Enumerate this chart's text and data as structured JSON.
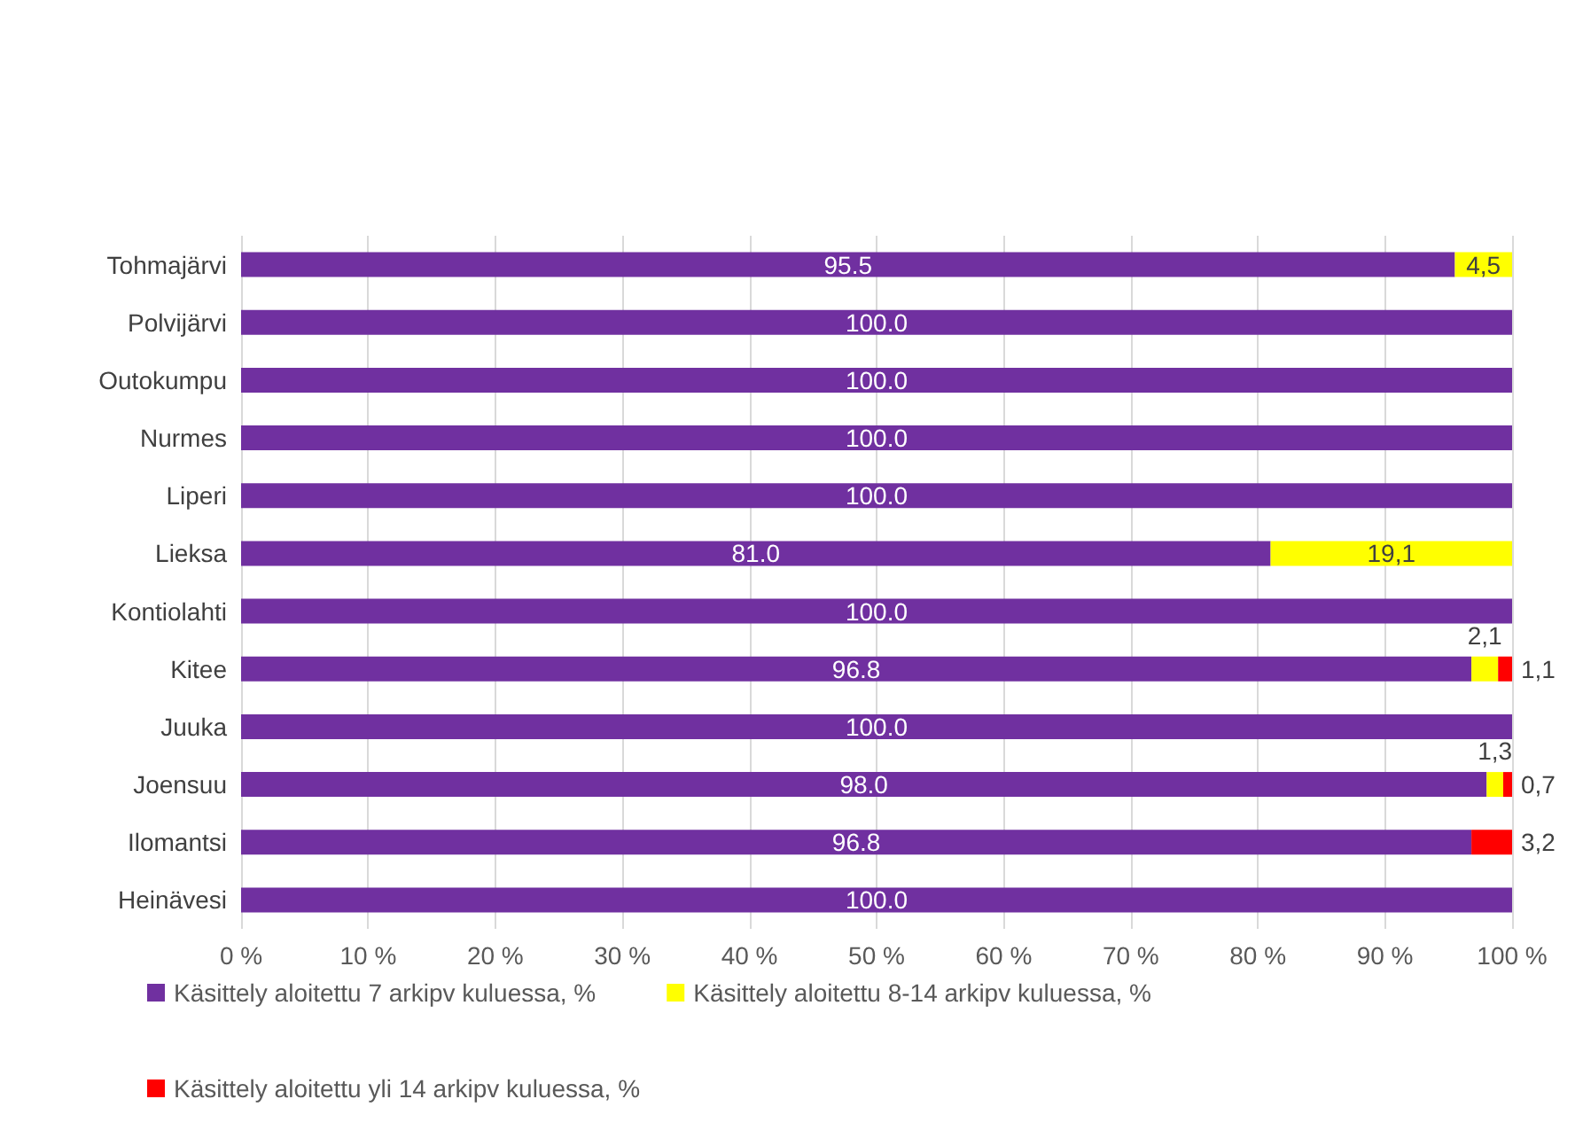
{
  "chart_data": {
    "type": "bar",
    "orientation": "horizontal",
    "stacked": true,
    "categories": [
      "Tohmajärvi",
      "Polvijärvi",
      "Outokumpu",
      "Nurmes",
      "Liperi",
      "Lieksa",
      "Kontiolahti",
      "Kitee",
      "Juuka",
      "Joensuu",
      "Ilomantsi",
      "Heinävesi"
    ],
    "series": [
      {
        "name": "Käsittely aloitettu 7 arkipv kuluessa, %",
        "color": "#7030a0",
        "values": [
          95.5,
          100,
          100,
          100,
          100,
          81.0,
          100,
          96.8,
          100,
          98.0,
          96.8,
          100
        ],
        "value_labels": [
          "95.5",
          "100.0",
          "100.0",
          "100.0",
          "100.0",
          "81.0",
          "100.0",
          "96.8",
          "100.0",
          "98.0",
          "96.8",
          "100.0"
        ]
      },
      {
        "name": "Käsittely aloitettu 8-14 arkipv kuluessa, %",
        "color": "#ffff00",
        "values": [
          4.5,
          null,
          null,
          null,
          null,
          19.1,
          null,
          2.1,
          null,
          1.3,
          null,
          null
        ],
        "value_labels": [
          "4,5",
          null,
          null,
          null,
          null,
          "19,1",
          null,
          "2,1",
          null,
          "1,3",
          null,
          null
        ]
      },
      {
        "name": "Käsittely aloitettu yli 14 arkipv kuluessa, %",
        "color": "#ff0000",
        "values": [
          null,
          null,
          null,
          null,
          null,
          null,
          null,
          1.1,
          null,
          0.7,
          3.2,
          null
        ],
        "value_labels": [
          null,
          null,
          null,
          null,
          null,
          null,
          null,
          "1,1",
          null,
          "0,7",
          "3,2",
          null
        ]
      }
    ],
    "xlim": [
      0,
      100
    ],
    "xticks": [
      {
        "value": 0,
        "label": "0 %"
      },
      {
        "value": 10,
        "label": "10 %"
      },
      {
        "value": 20,
        "label": "20 %"
      },
      {
        "value": 30,
        "label": "30 %"
      },
      {
        "value": 40,
        "label": "40 %"
      },
      {
        "value": 50,
        "label": "50 %"
      },
      {
        "value": 60,
        "label": "60 %"
      },
      {
        "value": 70,
        "label": "70 %"
      },
      {
        "value": 80,
        "label": "80 %"
      },
      {
        "value": 90,
        "label": "90 %"
      },
      {
        "value": 100,
        "label": "100 %"
      }
    ],
    "grid": "x",
    "legend": "bottom"
  }
}
